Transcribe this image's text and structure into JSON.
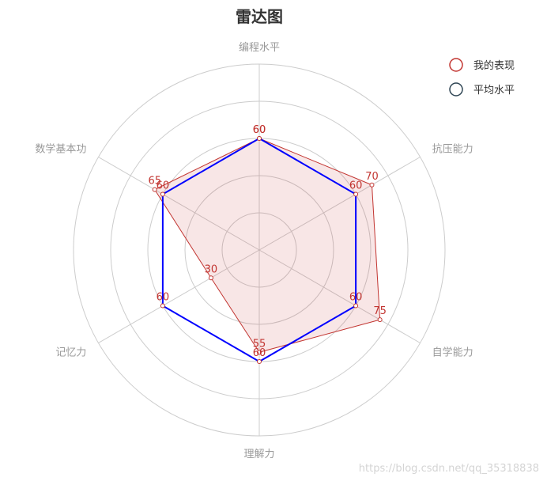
{
  "chart_data": {
    "type": "radar",
    "title": "雷达图",
    "indicators": [
      "编程水平",
      "抗压能力",
      "自学能力",
      "理解力",
      "记忆力",
      "数学基本功"
    ],
    "max": 100,
    "rings": 5,
    "legend_position": "top-right",
    "series": [
      {
        "name": "我的表现",
        "values": [
          60,
          70,
          75,
          55,
          30,
          65
        ],
        "color": "#c23531",
        "area": true
      },
      {
        "name": "平均水平",
        "values": [
          60,
          60,
          60,
          60,
          60,
          60
        ],
        "color": "#0000ff",
        "area": false
      }
    ]
  },
  "legend": {
    "items": [
      {
        "label": "我的表现",
        "color": "#c23531"
      },
      {
        "label": "平均水平",
        "color": "#2f4554"
      }
    ]
  },
  "watermark": "https://blog.csdn.net/qq_35318838"
}
